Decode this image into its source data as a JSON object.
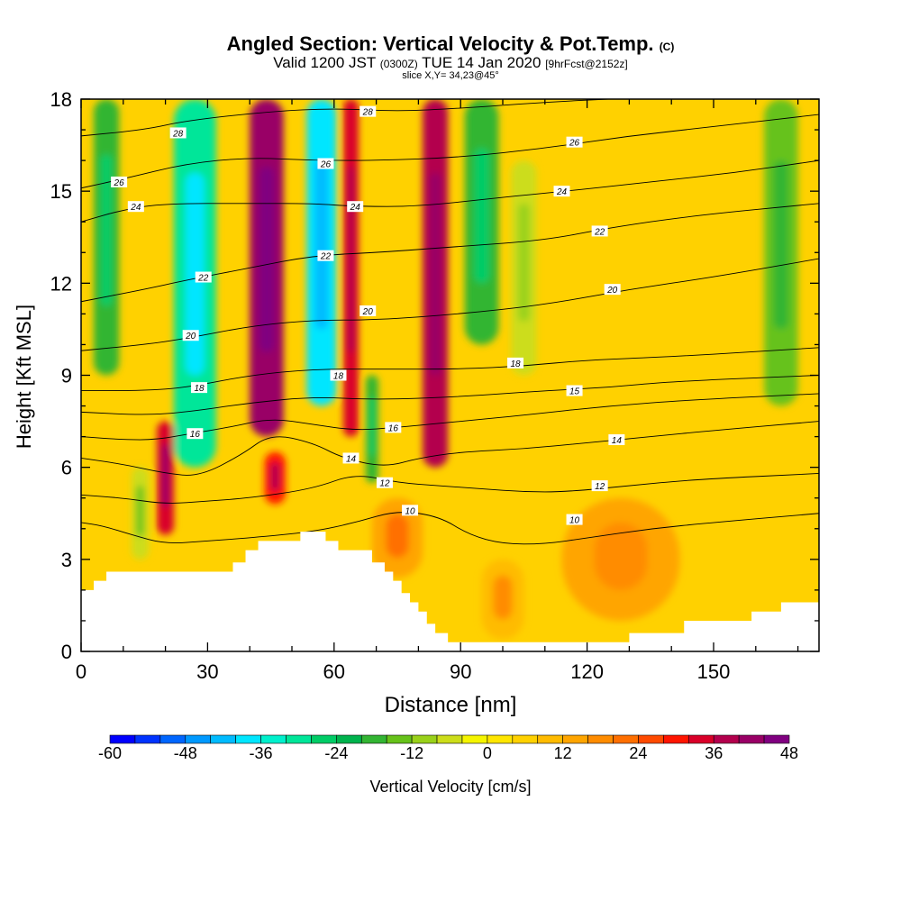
{
  "header": {
    "title_main": "Angled Section: Vertical Velocity & Pot.Temp.",
    "title_unit": "(C)",
    "valid_prefix": "Valid 1200 JST",
    "valid_utc": "(0300Z)",
    "valid_date": "TUE 14 Jan 2020",
    "valid_fcst": "[9hrFcst@2152z]",
    "slice": "slice X,Y= 34,23@45°"
  },
  "chart_data": {
    "type": "heatmap",
    "xlabel": "Distance [nm]",
    "ylabel": "Height [Kft MSL]",
    "xlim": [
      0,
      175
    ],
    "ylim": [
      0,
      18
    ],
    "x_ticks": [
      0,
      30,
      60,
      90,
      120,
      150
    ],
    "x_tick_labels": [
      "0",
      "30",
      "60",
      "90",
      "120",
      "150"
    ],
    "y_ticks": [
      0,
      3,
      6,
      9,
      12,
      15,
      18
    ],
    "y_tick_labels": [
      "0",
      "3",
      "6",
      "9",
      "12",
      "15",
      "18"
    ],
    "background_velocity": 6,
    "velocity_features": [
      {
        "x": 6,
        "ybot": 9,
        "ytop": 18,
        "w": 3,
        "v": -20
      },
      {
        "x": 27,
        "ybot": 6,
        "ytop": 18,
        "w": 5,
        "v": -32
      },
      {
        "x": 20,
        "ybot": 3.8,
        "ytop": 7.5,
        "w": 2,
        "v": 34
      },
      {
        "x": 44,
        "ybot": 7,
        "ytop": 18,
        "w": 4,
        "v": 40
      },
      {
        "x": 46,
        "ybot": 4.8,
        "ytop": 6.5,
        "w": 2.5,
        "v": 30
      },
      {
        "x": 57,
        "ybot": 8,
        "ytop": 18,
        "w": 3.5,
        "v": -38
      },
      {
        "x": 64,
        "ybot": 7,
        "ytop": 18,
        "w": 1.8,
        "v": 32
      },
      {
        "x": 69,
        "ybot": 5.5,
        "ytop": 9,
        "w": 1.5,
        "v": -20
      },
      {
        "x": 84,
        "ybot": 6,
        "ytop": 18,
        "w": 3,
        "v": 36
      },
      {
        "x": 95,
        "ybot": 10,
        "ytop": 18,
        "w": 4,
        "v": -20
      },
      {
        "x": 105,
        "ybot": 9,
        "ytop": 16,
        "w": 3,
        "v": -6
      },
      {
        "x": 166,
        "ybot": 8,
        "ytop": 18,
        "w": 4,
        "v": -14
      },
      {
        "x": 75,
        "ybot": 2.4,
        "ytop": 5,
        "w": 6,
        "v": 14
      },
      {
        "x": 128,
        "ybot": 1,
        "ytop": 5,
        "w": 14,
        "v": 12
      },
      {
        "x": 14,
        "ybot": 3,
        "ytop": 6,
        "w": 2,
        "v": -8
      },
      {
        "x": 100,
        "ybot": 0.4,
        "ytop": 3,
        "w": 5,
        "v": 10
      }
    ],
    "terrain": [
      [
        0,
        2
      ],
      [
        3,
        2
      ],
      [
        3,
        2.3
      ],
      [
        6,
        2.3
      ],
      [
        6,
        2.6
      ],
      [
        36,
        2.6
      ],
      [
        36,
        2.9
      ],
      [
        39,
        2.9
      ],
      [
        39,
        3.3
      ],
      [
        42,
        3.3
      ],
      [
        42,
        3.6
      ],
      [
        52,
        3.6
      ],
      [
        52,
        3.9
      ],
      [
        58,
        3.9
      ],
      [
        58,
        3.6
      ],
      [
        61,
        3.6
      ],
      [
        61,
        3.3
      ],
      [
        69,
        3.3
      ],
      [
        69,
        2.9
      ],
      [
        72,
        2.9
      ],
      [
        72,
        2.6
      ],
      [
        74,
        2.6
      ],
      [
        74,
        2.3
      ],
      [
        76,
        2.3
      ],
      [
        76,
        1.9
      ],
      [
        78,
        1.9
      ],
      [
        78,
        1.6
      ],
      [
        80,
        1.6
      ],
      [
        80,
        1.3
      ],
      [
        82,
        1.3
      ],
      [
        82,
        0.9
      ],
      [
        84,
        0.9
      ],
      [
        84,
        0.6
      ],
      [
        87,
        0.6
      ],
      [
        87,
        0.3
      ],
      [
        130,
        0.3
      ],
      [
        130,
        0.6
      ],
      [
        143,
        0.6
      ],
      [
        143,
        1
      ],
      [
        159,
        1
      ],
      [
        159,
        1.3
      ],
      [
        166,
        1.3
      ],
      [
        166,
        1.6
      ],
      [
        175,
        1.6
      ]
    ],
    "theta_contours": [
      {
        "label": "10",
        "points": [
          [
            0,
            4.2
          ],
          [
            5,
            4.1
          ],
          [
            12,
            3.8
          ],
          [
            20,
            3.5
          ],
          [
            30,
            3.6
          ],
          [
            40,
            3.7
          ],
          [
            55,
            3.9
          ],
          [
            65,
            4.2
          ],
          [
            75,
            4.6
          ],
          [
            85,
            4.4
          ],
          [
            92,
            3.8
          ],
          [
            100,
            3.5
          ],
          [
            110,
            3.5
          ],
          [
            120,
            3.7
          ],
          [
            135,
            4
          ],
          [
            150,
            4.2
          ],
          [
            175,
            4.5
          ]
        ],
        "labels": [
          [
            78,
            4.6
          ],
          [
            117,
            4.3
          ]
        ]
      },
      {
        "label": "12",
        "points": [
          [
            0,
            5.1
          ],
          [
            10,
            5
          ],
          [
            20,
            4.8
          ],
          [
            30,
            4.9
          ],
          [
            40,
            5
          ],
          [
            55,
            5.3
          ],
          [
            65,
            5.8
          ],
          [
            75,
            5.5
          ],
          [
            85,
            5.4
          ],
          [
            95,
            5.3
          ],
          [
            105,
            5.2
          ],
          [
            115,
            5.2
          ],
          [
            130,
            5.4
          ],
          [
            145,
            5.6
          ],
          [
            175,
            5.8
          ]
        ],
        "labels": [
          [
            72,
            5.5
          ],
          [
            123,
            5.4
          ]
        ]
      },
      {
        "label": "14",
        "points": [
          [
            0,
            6.3
          ],
          [
            10,
            6.1
          ],
          [
            20,
            5.8
          ],
          [
            28,
            5.7
          ],
          [
            38,
            6.4
          ],
          [
            45,
            7.1
          ],
          [
            55,
            6.8
          ],
          [
            62,
            6.3
          ],
          [
            72,
            6
          ],
          [
            80,
            6.3
          ],
          [
            90,
            6.5
          ],
          [
            105,
            6.6
          ],
          [
            120,
            6.8
          ],
          [
            135,
            7
          ],
          [
            150,
            7.2
          ],
          [
            175,
            7.5
          ]
        ],
        "labels": [
          [
            64,
            6.3
          ],
          [
            127,
            6.9
          ]
        ]
      },
      {
        "label": "16",
        "points": [
          [
            0,
            7
          ],
          [
            10,
            6.9
          ],
          [
            18,
            6.9
          ],
          [
            26,
            7.1
          ],
          [
            35,
            7.3
          ],
          [
            45,
            7.6
          ],
          [
            55,
            7.4
          ],
          [
            65,
            7.2
          ],
          [
            75,
            7.3
          ],
          [
            90,
            7.5
          ],
          [
            105,
            7.7
          ],
          [
            125,
            8
          ],
          [
            145,
            8.2
          ],
          [
            175,
            8.4
          ]
        ],
        "labels": [
          [
            27,
            7.1
          ],
          [
            74,
            7.3
          ]
        ]
      },
      {
        "label": "15",
        "points": [
          [
            0,
            7.8
          ],
          [
            15,
            7.7
          ],
          [
            25,
            7.8
          ],
          [
            40,
            8.1
          ],
          [
            55,
            8.3
          ],
          [
            70,
            8.2
          ],
          [
            90,
            8.3
          ],
          [
            110,
            8.5
          ],
          [
            125,
            8.6
          ],
          [
            140,
            8.8
          ],
          [
            175,
            9
          ]
        ],
        "labels": [
          [
            117,
            8.5
          ]
        ]
      },
      {
        "label": "18",
        "points": [
          [
            0,
            8.5
          ],
          [
            15,
            8.5
          ],
          [
            25,
            8.6
          ],
          [
            40,
            9
          ],
          [
            55,
            9.2
          ],
          [
            70,
            9.2
          ],
          [
            90,
            9.2
          ],
          [
            105,
            9.3
          ],
          [
            120,
            9.5
          ],
          [
            140,
            9.6
          ],
          [
            175,
            9.9
          ]
        ],
        "labels": [
          [
            28,
            8.6
          ],
          [
            61,
            9
          ],
          [
            103,
            9.4
          ]
        ]
      },
      {
        "label": "20",
        "points": [
          [
            0,
            9.8
          ],
          [
            15,
            10
          ],
          [
            25,
            10.2
          ],
          [
            40,
            10.6
          ],
          [
            55,
            10.8
          ],
          [
            70,
            10.8
          ],
          [
            90,
            11
          ],
          [
            110,
            11.3
          ],
          [
            130,
            11.8
          ],
          [
            150,
            12.2
          ],
          [
            175,
            12.8
          ]
        ],
        "labels": [
          [
            26,
            10.3
          ],
          [
            68,
            11.1
          ],
          [
            126,
            11.8
          ]
        ]
      },
      {
        "label": "22",
        "points": [
          [
            0,
            11.4
          ],
          [
            15,
            11.8
          ],
          [
            25,
            12.1
          ],
          [
            40,
            12.5
          ],
          [
            55,
            12.9
          ],
          [
            70,
            13
          ],
          [
            90,
            13.2
          ],
          [
            110,
            13.4
          ],
          [
            125,
            13.8
          ],
          [
            145,
            14.2
          ],
          [
            175,
            14.6
          ]
        ],
        "labels": [
          [
            29,
            12.2
          ],
          [
            58,
            12.9
          ],
          [
            123,
            13.7
          ]
        ]
      },
      {
        "label": "24",
        "points": [
          [
            0,
            14
          ],
          [
            10,
            14.4
          ],
          [
            20,
            14.6
          ],
          [
            40,
            14.6
          ],
          [
            55,
            14.6
          ],
          [
            65,
            14.5
          ],
          [
            80,
            14.5
          ],
          [
            100,
            14.8
          ],
          [
            115,
            15
          ],
          [
            135,
            15.3
          ],
          [
            155,
            15.6
          ],
          [
            175,
            16
          ]
        ],
        "labels": [
          [
            13,
            14.5
          ],
          [
            65,
            14.5
          ],
          [
            114,
            15
          ]
        ]
      },
      {
        "label": "26",
        "points": [
          [
            0,
            15.1
          ],
          [
            10,
            15.4
          ],
          [
            25,
            15.9
          ],
          [
            40,
            16.1
          ],
          [
            55,
            16
          ],
          [
            70,
            16
          ],
          [
            90,
            16.1
          ],
          [
            110,
            16.4
          ],
          [
            130,
            16.8
          ],
          [
            150,
            17.1
          ],
          [
            175,
            17.5
          ]
        ],
        "labels": [
          [
            9,
            15.3
          ],
          [
            58,
            15.9
          ],
          [
            117,
            16.6
          ]
        ]
      },
      {
        "label": "28",
        "points": [
          [
            0,
            16.8
          ],
          [
            15,
            17
          ],
          [
            25,
            17.3
          ],
          [
            45,
            17.6
          ],
          [
            60,
            17.7
          ],
          [
            75,
            17.6
          ],
          [
            90,
            17.7
          ],
          [
            110,
            17.9
          ],
          [
            125,
            18
          ]
        ],
        "labels": [
          [
            23,
            16.9
          ],
          [
            68,
            17.6
          ]
        ]
      }
    ],
    "colorbar": {
      "label": "Vertical Velocity [cm/s]",
      "min": -60,
      "max": 48,
      "step": 4,
      "tick_values": [
        -60,
        -48,
        -36,
        -24,
        -12,
        0,
        12,
        24,
        36,
        48
      ],
      "tick_labels": [
        "-60",
        "-48",
        "-36",
        "-24",
        "-12",
        "0",
        "12",
        "24",
        "36",
        "48"
      ],
      "colors": [
        "#0000ff",
        "#0033ff",
        "#0066ff",
        "#0099ff",
        "#00bbff",
        "#00e6ff",
        "#00f0cc",
        "#00e699",
        "#00cc66",
        "#00b34d",
        "#33b533",
        "#66c21a",
        "#99d11a",
        "#ccdd1a",
        "#f5f500",
        "#ffe600",
        "#ffd100",
        "#ffbb00",
        "#ffa500",
        "#ff8c00",
        "#ff6f00",
        "#ff4a00",
        "#ff1500",
        "#d90029",
        "#b3004d",
        "#990066",
        "#800080"
      ]
    }
  }
}
